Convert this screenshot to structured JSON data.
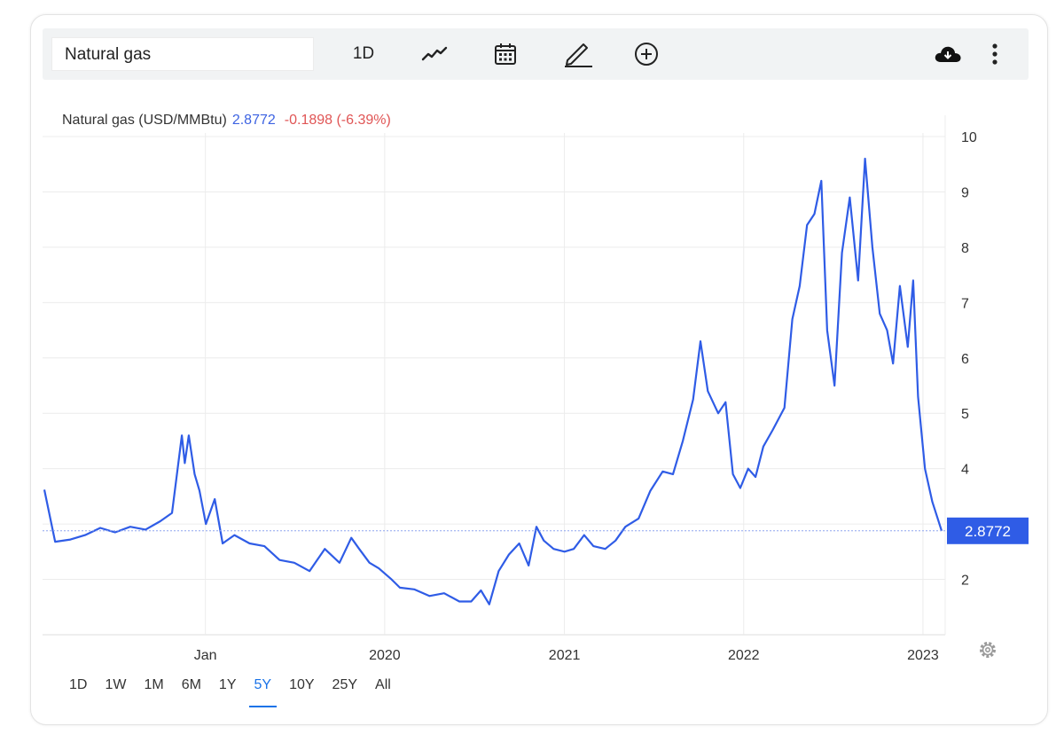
{
  "toolbar": {
    "search_value": "Natural gas",
    "interval_label": "1D",
    "icons": [
      "line-chart-icon",
      "calendar-icon",
      "pencil-icon",
      "plus-circle-icon",
      "cloud-download-icon",
      "more-vert-icon"
    ]
  },
  "legend": {
    "name": "Natural gas (USD/MMBtu)",
    "price": "2.8772",
    "change": "-0.1898 (-6.39%)",
    "price_color": "#3d63e2",
    "change_color": "#e05555"
  },
  "price_tag": "2.8772",
  "ranges": [
    "1D",
    "1W",
    "1M",
    "6M",
    "1Y",
    "5Y",
    "10Y",
    "25Y",
    "All"
  ],
  "active_range": "5Y",
  "colors": {
    "line": "#2f5ce6",
    "tag": "#2f5ce6",
    "grid": "#ececec"
  },
  "chart_data": {
    "type": "line",
    "title": "",
    "xlabel": "",
    "ylabel": "",
    "y_ticks": [
      "2",
      "3",
      "4",
      "5",
      "6",
      "7",
      "8",
      "9",
      "10"
    ],
    "ylim": [
      1,
      10
    ],
    "x_ticks": [
      "Jan",
      "2020",
      "2021",
      "2022",
      "2023"
    ],
    "xlim": [
      "2018-02-07",
      "2023-02-08"
    ],
    "grid": true,
    "current_value": 2.8772,
    "series": [
      {
        "x": [
          "2018-02-07",
          "2018-03-01",
          "2018-04-01",
          "2018-05-01",
          "2018-06-01",
          "2018-07-01",
          "2018-08-01",
          "2018-09-01",
          "2018-10-01",
          "2018-10-25",
          "2018-11-14",
          "2018-11-20",
          "2018-11-28",
          "2018-12-10",
          "2018-12-20",
          "2019-01-02",
          "2019-01-20",
          "2019-02-05",
          "2019-03-01",
          "2019-04-01",
          "2019-05-01",
          "2019-06-01",
          "2019-07-01",
          "2019-08-01",
          "2019-09-01",
          "2019-10-01",
          "2019-10-25",
          "2019-11-10",
          "2019-12-01",
          "2019-12-20",
          "2020-01-15",
          "2020-02-01",
          "2020-03-01",
          "2020-04-01",
          "2020-05-01",
          "2020-06-01",
          "2020-06-25",
          "2020-07-15",
          "2020-08-01",
          "2020-08-20",
          "2020-09-10",
          "2020-10-01",
          "2020-10-20",
          "2020-11-05",
          "2020-11-20",
          "2020-12-10",
          "2021-01-01",
          "2021-01-20",
          "2021-02-10",
          "2021-03-01",
          "2021-03-25",
          "2021-04-15",
          "2021-05-05",
          "2021-06-01",
          "2021-06-25",
          "2021-07-20",
          "2021-08-10",
          "2021-08-30",
          "2021-09-20",
          "2021-10-05",
          "2021-10-20",
          "2021-11-10",
          "2021-11-25",
          "2021-12-10",
          "2021-12-25",
          "2022-01-10",
          "2022-01-25",
          "2022-02-10",
          "2022-03-01",
          "2022-03-25",
          "2022-04-10",
          "2022-04-25",
          "2022-05-10",
          "2022-05-25",
          "2022-06-08",
          "2022-06-20",
          "2022-07-05",
          "2022-07-20",
          "2022-08-05",
          "2022-08-22",
          "2022-09-05",
          "2022-09-20",
          "2022-10-05",
          "2022-10-20",
          "2022-11-01",
          "2022-11-15",
          "2022-12-01",
          "2022-12-12",
          "2022-12-22",
          "2023-01-05",
          "2023-01-20",
          "2023-02-08"
        ],
        "values": [
          3.62,
          2.68,
          2.72,
          2.8,
          2.93,
          2.85,
          2.95,
          2.9,
          3.05,
          3.2,
          4.6,
          4.1,
          4.6,
          3.9,
          3.6,
          3.0,
          3.45,
          2.65,
          2.8,
          2.65,
          2.6,
          2.35,
          2.3,
          2.15,
          2.55,
          2.3,
          2.75,
          2.55,
          2.3,
          2.2,
          2.0,
          1.85,
          1.82,
          1.7,
          1.75,
          1.6,
          1.6,
          1.8,
          1.55,
          2.15,
          2.45,
          2.65,
          2.25,
          2.95,
          2.7,
          2.55,
          2.5,
          2.55,
          2.8,
          2.6,
          2.55,
          2.7,
          2.95,
          3.1,
          3.6,
          3.95,
          3.9,
          4.5,
          5.25,
          6.3,
          5.4,
          5.0,
          5.2,
          3.9,
          3.65,
          4.0,
          3.85,
          4.4,
          4.7,
          5.1,
          6.7,
          7.3,
          8.4,
          8.6,
          9.2,
          6.5,
          5.5,
          7.9,
          8.9,
          7.4,
          9.6,
          8.0,
          6.8,
          6.5,
          5.9,
          7.3,
          6.2,
          7.4,
          5.3,
          4.0,
          3.4,
          2.8772
        ]
      }
    ]
  }
}
